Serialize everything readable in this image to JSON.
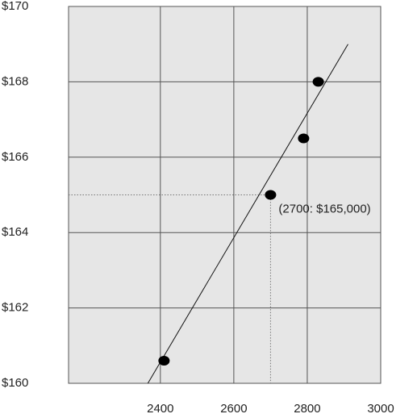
{
  "chart_data": {
    "type": "scatter",
    "annotation": "(2700: $165,000)",
    "series": [
      {
        "color": "#000000",
        "x": [
          2410,
          2700,
          2790,
          2830
        ],
        "values": [
          160.6,
          165,
          166.5,
          168
        ]
      }
    ],
    "highlight_index": 1,
    "trendline": {
      "x": [
        2366,
        2911
      ],
      "values": [
        160,
        169
      ]
    },
    "xlim": [
      2150,
      3000
    ],
    "xticks": [
      2400,
      2600,
      2800,
      3000
    ],
    "ylim": [
      160,
      170
    ],
    "yticks": [
      {
        "value": 160,
        "label": "$160"
      },
      {
        "value": 162,
        "label": "$162"
      },
      {
        "value": 164,
        "label": "$164"
      },
      {
        "value": 166,
        "label": "$166"
      },
      {
        "value": 168,
        "label": "$168"
      },
      {
        "value": 170,
        "label": "$170"
      }
    ],
    "grid": true
  }
}
